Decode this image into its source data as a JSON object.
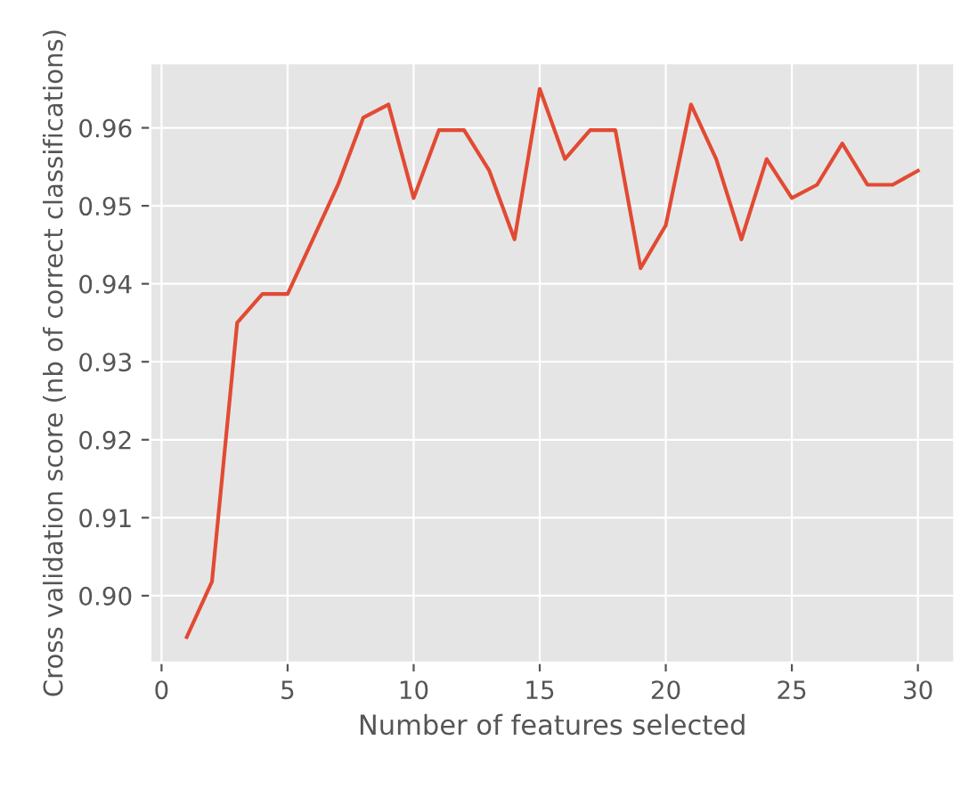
{
  "chart_data": {
    "type": "line",
    "xlabel": "Number of features selected",
    "ylabel": "Cross validation score (nb of correct classifications)",
    "x": [
      1,
      2,
      3,
      4,
      5,
      6,
      7,
      8,
      9,
      10,
      11,
      12,
      13,
      14,
      15,
      16,
      17,
      18,
      19,
      20,
      21,
      22,
      23,
      24,
      25,
      26,
      27,
      28,
      29,
      30
    ],
    "series": [
      {
        "color": "#e24a33",
        "values": [
          0.8947,
          0.9018,
          0.935,
          0.9387,
          0.9387,
          0.9457,
          0.9527,
          0.9613,
          0.963,
          0.951,
          0.9597,
          0.9597,
          0.9545,
          0.9457,
          0.965,
          0.956,
          0.9597,
          0.9597,
          0.942,
          0.9475,
          0.963,
          0.956,
          0.9457,
          0.956,
          0.951,
          0.9527,
          0.958,
          0.9527,
          0.9527,
          0.9545
        ]
      }
    ],
    "xlim": [
      -0.45,
      31.45
    ],
    "xticks": [
      0,
      5,
      10,
      15,
      20,
      25,
      30
    ],
    "ylim": [
      0.8914,
      0.9683
    ],
    "yticks": [
      {
        "value": 0.9,
        "label": "0.90"
      },
      {
        "value": 0.91,
        "label": "0.91"
      },
      {
        "value": 0.92,
        "label": "0.92"
      },
      {
        "value": 0.93,
        "label": "0.93"
      },
      {
        "value": 0.94,
        "label": "0.94"
      },
      {
        "value": 0.95,
        "label": "0.95"
      },
      {
        "value": 0.96,
        "label": "0.96"
      }
    ],
    "grid": true,
    "line_style": "solid"
  }
}
